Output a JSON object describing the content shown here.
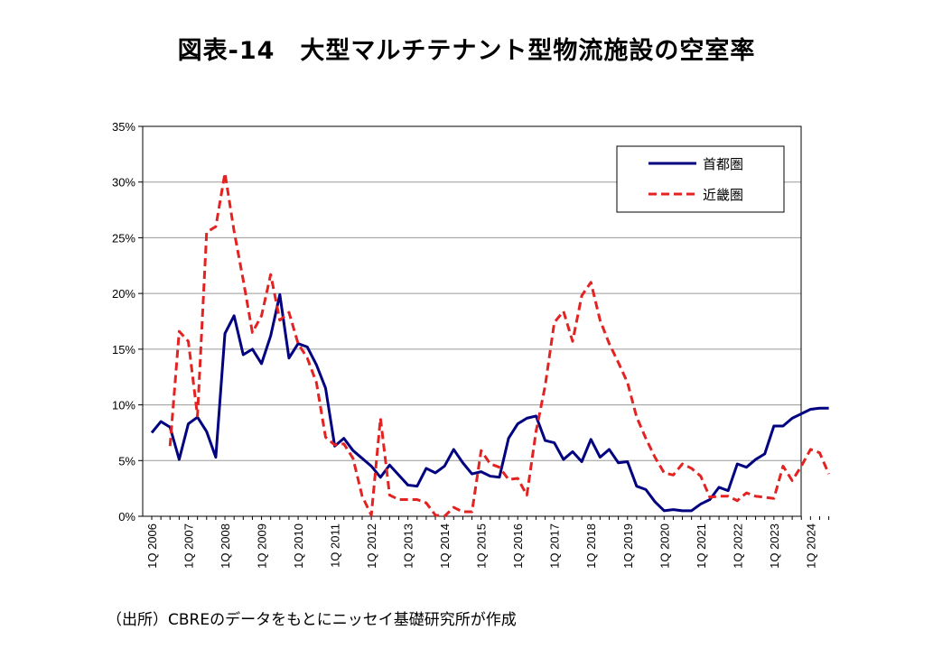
{
  "chart_data": {
    "type": "line",
    "title": "図表-14　大型マルチテナント型物流施設の空室率",
    "source": "（出所）CBREのデータをもとにニッセイ基礎研究所が作成",
    "xlabel": "",
    "ylabel": "",
    "ylim": [
      0,
      35
    ],
    "y_ticks": [
      0,
      5,
      10,
      15,
      20,
      25,
      30,
      35
    ],
    "y_tick_labels": [
      "0%",
      "5%",
      "10%",
      "15%",
      "20%",
      "25%",
      "30%",
      "35%"
    ],
    "x_tick_labels": [
      "1Q 2006",
      "1Q 2007",
      "1Q 2008",
      "1Q 2009",
      "1Q 2010",
      "1Q 2011",
      "1Q 2012",
      "1Q 2013",
      "1Q 2014",
      "1Q 2015",
      "1Q 2016",
      "1Q 2017",
      "1Q 2018",
      "1Q 2019",
      "1Q 2020",
      "1Q 2021",
      "1Q 2022",
      "1Q 2023",
      "1Q 2024"
    ],
    "start_period": "1Q 2006",
    "n_quarters": 75,
    "grid": true,
    "legend_position": "top-right",
    "series": [
      {
        "name": "首都圏",
        "color": "#000080",
        "style": "solid",
        "start_index": 0,
        "values": [
          7.5,
          8.5,
          8.0,
          5.1,
          8.3,
          8.9,
          7.6,
          5.3,
          16.4,
          18.0,
          14.5,
          15.0,
          13.7,
          16.2,
          19.9,
          14.2,
          15.5,
          15.2,
          13.6,
          11.5,
          6.3,
          7.0,
          5.9,
          5.2,
          4.5,
          3.5,
          4.6,
          3.7,
          2.8,
          2.7,
          4.3,
          3.9,
          4.5,
          6.0,
          4.8,
          3.8,
          4.0,
          3.6,
          3.5,
          7.0,
          8.3,
          8.8,
          9.0,
          6.8,
          6.6,
          5.1,
          5.8,
          4.9,
          6.9,
          5.3,
          6.0,
          4.8,
          4.9,
          2.7,
          2.4,
          1.3,
          0.5,
          0.6,
          0.5,
          0.5,
          1.1,
          1.5,
          2.6,
          2.3,
          4.7,
          4.4,
          5.1,
          5.6,
          8.1,
          8.1,
          8.8,
          9.2,
          9.6,
          9.7,
          9.7
        ]
      },
      {
        "name": "近畿圏",
        "color": "#e32222",
        "style": "dashed",
        "start_index": 2,
        "values": [
          6.3,
          16.6,
          15.7,
          9.0,
          25.5,
          26.0,
          30.8,
          25.6,
          21.2,
          16.5,
          18.0,
          21.7,
          17.6,
          18.3,
          15.5,
          14.2,
          12.0,
          7.1,
          6.4,
          6.5,
          5.2,
          1.8,
          0.1,
          8.8,
          1.9,
          1.5,
          1.5,
          1.5,
          1.2,
          0.1,
          0.0,
          0.8,
          0.4,
          0.4,
          5.9,
          4.7,
          4.4,
          3.3,
          3.4,
          1.9,
          7.6,
          11.7,
          17.4,
          18.4,
          15.7,
          19.8,
          21.0,
          17.6,
          15.5,
          13.8,
          12.0,
          8.9,
          7.0,
          5.3,
          3.9,
          3.7,
          4.7,
          4.3,
          3.6,
          1.7,
          1.8,
          1.8,
          1.4,
          2.1,
          1.8,
          1.7,
          1.6,
          4.5,
          3.2,
          4.5,
          6.0,
          5.7,
          3.8
        ]
      }
    ]
  }
}
